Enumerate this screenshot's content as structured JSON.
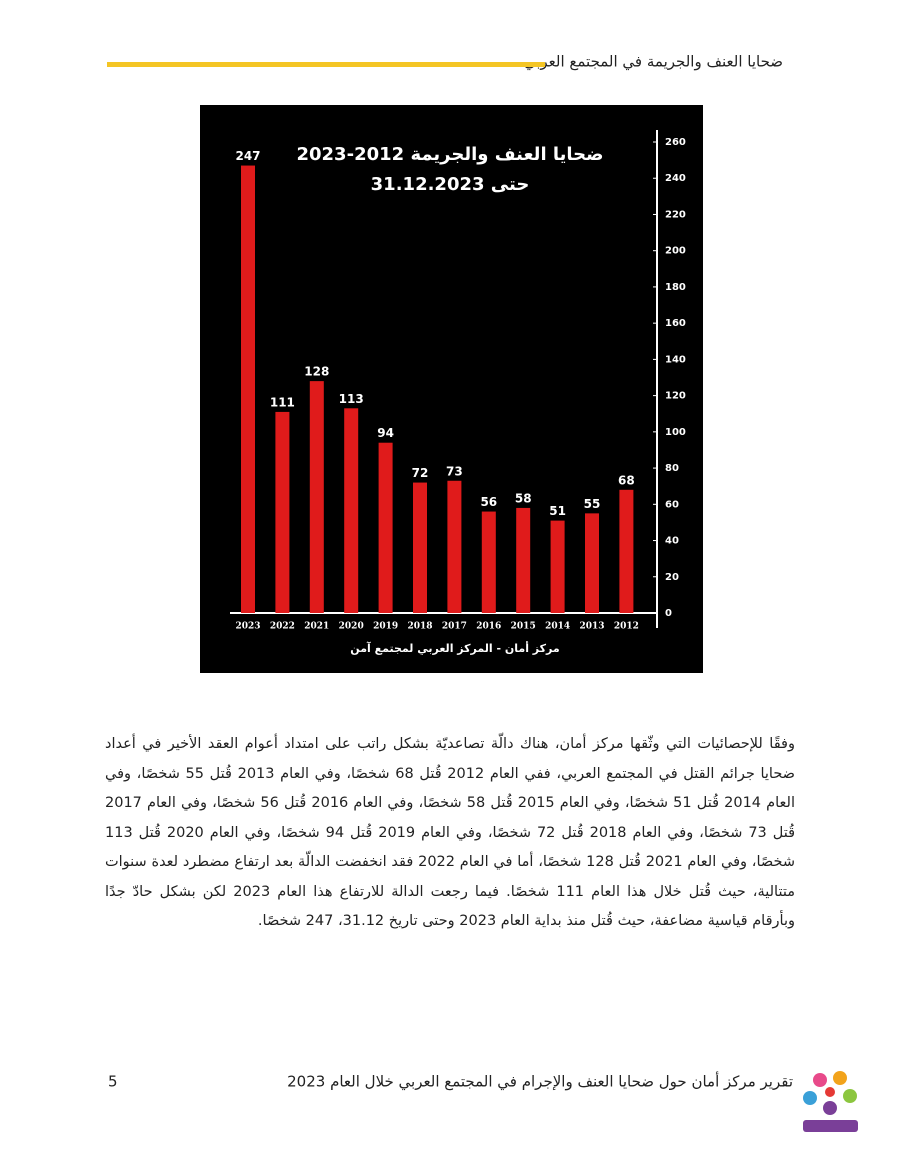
{
  "header": {
    "title": "ضحايا العنف والجريمة في المجتمع العربي"
  },
  "chart_data": {
    "type": "bar",
    "title": "ضحايا العنف والجريمة 2012-2023",
    "subtitle": "حتى 31.12.2023",
    "source": "مركز أمان  - المركز العربي لمجتمع آمن",
    "categories": [
      "2023",
      "2022",
      "2021",
      "2020",
      "2019",
      "2018",
      "2017",
      "2016",
      "2015",
      "2014",
      "2013",
      "2012"
    ],
    "values": [
      247,
      111,
      128,
      113,
      94,
      72,
      73,
      56,
      58,
      51,
      55,
      68
    ],
    "color": "#e01b1b",
    "ylim": [
      0,
      260
    ],
    "yticks": [
      0,
      20,
      40,
      60,
      80,
      100,
      120,
      140,
      160,
      180,
      200,
      220,
      240,
      260
    ],
    "y_axis_side": "right"
  },
  "body": {
    "paragraph": "وفقًا للإحصائيات التي وثّقها مركز أمان، هناك دالّة تصاعديّة بشكل راتب على امتداد أعوام العقد الأخير في أعداد ضحايا جرائم القتل في المجتمع العربي، ففي العام 2012 قُتل 68 شخصًا، وفي العام 2013 قُتل 55 شخصًا، وفي العام 2014 قُتل 51 شخصًا، وفي العام 2015 قُتل 58 شخصًا، وفي العام 2016 قُتل 56 شخصًا، وفي العام 2017 قُتل 73 شخصًا، وفي العام 2018 قُتل 72 شخصًا، وفي العام 2019 قُتل 94 شخصًا، وفي العام 2020 قُتل 113 شخصًا، وفي العام 2021 قُتل 128 شخصًا، أما في العام 2022 فقد انخفضت الدالّة بعد ارتفاع مضطرد لعدة سنوات متتالية، حيث قُتل خلال هذا العام 111 شخصًا. فيما رجعت الدالة للارتفاع هذا العام 2023 لكن بشكل حادّ جدًا وبأرقام قياسية مضاعفة، حيث قُتل منذ بداية العام 2023 وحتى تاريخ 31.12، 247 شخصًا."
  },
  "footer": {
    "text": "تقرير مركز أمان حول ضحايا العنف والإجرام في المجتمع العربي خلال العام 2023",
    "page_number": "5"
  }
}
